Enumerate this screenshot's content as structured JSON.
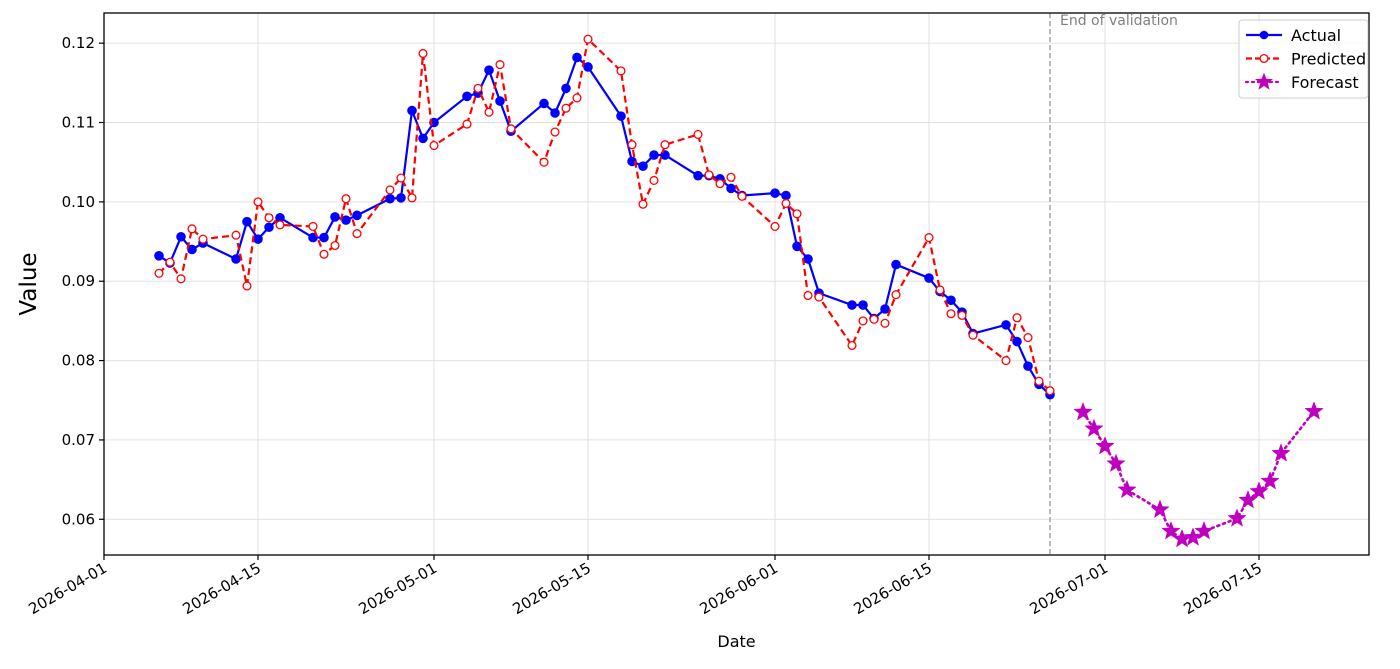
{
  "chart_data": {
    "type": "line",
    "title": "",
    "xlabel": "Date",
    "ylabel": "Value",
    "x_range": [
      "2026-04-01",
      "2026-07-25"
    ],
    "ylim": [
      0.0555,
      0.1238
    ],
    "grid": true,
    "legend_position": "top-right",
    "x_ticks": [
      "2026-04-01",
      "2026-04-15",
      "2026-05-01",
      "2026-05-15",
      "2026-06-01",
      "2026-06-15",
      "2026-07-01",
      "2026-07-15"
    ],
    "y_ticks": [
      "0.06",
      "0.07",
      "0.08",
      "0.09",
      "0.10",
      "0.11",
      "0.12"
    ],
    "annotations": [
      {
        "text": "End of validation",
        "x": "2026-06-26"
      }
    ],
    "series": [
      {
        "name": "Actual",
        "color": "#0000ff",
        "style": "solid-filled-circle",
        "points": [
          [
            "2026-04-06",
            0.0932
          ],
          [
            "2026-04-07",
            0.0923
          ],
          [
            "2026-04-08",
            0.0956
          ],
          [
            "2026-04-09",
            0.094
          ],
          [
            "2026-04-10",
            0.0948
          ],
          [
            "2026-04-13",
            0.0928
          ],
          [
            "2026-04-14",
            0.0975
          ],
          [
            "2026-04-15",
            0.0953
          ],
          [
            "2026-04-16",
            0.0968
          ],
          [
            "2026-04-17",
            0.098
          ],
          [
            "2026-04-20",
            0.0955
          ],
          [
            "2026-04-21",
            0.0955
          ],
          [
            "2026-04-22",
            0.0981
          ],
          [
            "2026-04-23",
            0.0977
          ],
          [
            "2026-04-24",
            0.0983
          ],
          [
            "2026-04-27",
            0.1004
          ],
          [
            "2026-04-28",
            0.1005
          ],
          [
            "2026-04-29",
            0.1115
          ],
          [
            "2026-04-30",
            0.108
          ],
          [
            "2026-05-01",
            0.11
          ],
          [
            "2026-05-04",
            0.1133
          ],
          [
            "2026-05-05",
            0.1137
          ],
          [
            "2026-05-06",
            0.1166
          ],
          [
            "2026-05-07",
            0.1127
          ],
          [
            "2026-05-08",
            0.1089
          ],
          [
            "2026-05-11",
            0.1124
          ],
          [
            "2026-05-12",
            0.1112
          ],
          [
            "2026-05-13",
            0.1143
          ],
          [
            "2026-05-14",
            0.1182
          ],
          [
            "2026-05-15",
            0.117
          ],
          [
            "2026-05-18",
            0.1108
          ],
          [
            "2026-05-19",
            0.1051
          ],
          [
            "2026-05-20",
            0.1045
          ],
          [
            "2026-05-21",
            0.1059
          ],
          [
            "2026-05-22",
            0.1059
          ],
          [
            "2026-05-25",
            0.1033
          ],
          [
            "2026-05-26",
            0.1033
          ],
          [
            "2026-05-27",
            0.1029
          ],
          [
            "2026-05-28",
            0.1017
          ],
          [
            "2026-05-29",
            0.1008
          ],
          [
            "2026-06-01",
            0.1011
          ],
          [
            "2026-06-02",
            0.1008
          ],
          [
            "2026-06-03",
            0.0944
          ],
          [
            "2026-06-04",
            0.0928
          ],
          [
            "2026-06-05",
            0.0885
          ],
          [
            "2026-06-08",
            0.087
          ],
          [
            "2026-06-09",
            0.087
          ],
          [
            "2026-06-10",
            0.0853
          ],
          [
            "2026-06-11",
            0.0865
          ],
          [
            "2026-06-12",
            0.0921
          ],
          [
            "2026-06-15",
            0.0904
          ],
          [
            "2026-06-16",
            0.0887
          ],
          [
            "2026-06-17",
            0.0876
          ],
          [
            "2026-06-18",
            0.0861
          ],
          [
            "2026-06-19",
            0.0834
          ],
          [
            "2026-06-22",
            0.0845
          ],
          [
            "2026-06-23",
            0.0824
          ],
          [
            "2026-06-24",
            0.0793
          ],
          [
            "2026-06-25",
            0.077
          ],
          [
            "2026-06-26",
            0.0757
          ]
        ]
      },
      {
        "name": "Predicted",
        "color": "#ff0000",
        "style": "dashed-open-circle",
        "points": [
          [
            "2026-04-06",
            0.091
          ],
          [
            "2026-04-07",
            0.0924
          ],
          [
            "2026-04-08",
            0.0903
          ],
          [
            "2026-04-09",
            0.0966
          ],
          [
            "2026-04-10",
            0.0953
          ],
          [
            "2026-04-13",
            0.0958
          ],
          [
            "2026-04-14",
            0.0894
          ],
          [
            "2026-04-15",
            0.1
          ],
          [
            "2026-04-16",
            0.098
          ],
          [
            "2026-04-17",
            0.0971
          ],
          [
            "2026-04-20",
            0.0969
          ],
          [
            "2026-04-21",
            0.0934
          ],
          [
            "2026-04-22",
            0.0945
          ],
          [
            "2026-04-23",
            0.1004
          ],
          [
            "2026-04-24",
            0.096
          ],
          [
            "2026-04-27",
            0.1015
          ],
          [
            "2026-04-28",
            0.103
          ],
          [
            "2026-04-29",
            0.1005
          ],
          [
            "2026-04-30",
            0.1187
          ],
          [
            "2026-05-01",
            0.1071
          ],
          [
            "2026-05-04",
            0.1098
          ],
          [
            "2026-05-05",
            0.1143
          ],
          [
            "2026-05-06",
            0.1113
          ],
          [
            "2026-05-07",
            0.1173
          ],
          [
            "2026-05-08",
            0.1092
          ],
          [
            "2026-05-11",
            0.105
          ],
          [
            "2026-05-12",
            0.1088
          ],
          [
            "2026-05-13",
            0.1118
          ],
          [
            "2026-05-14",
            0.1131
          ],
          [
            "2026-05-15",
            0.1205
          ],
          [
            "2026-05-18",
            0.1165
          ],
          [
            "2026-05-19",
            0.1072
          ],
          [
            "2026-05-20",
            0.0997
          ],
          [
            "2026-05-21",
            0.1027
          ],
          [
            "2026-05-22",
            0.1072
          ],
          [
            "2026-05-25",
            0.1085
          ],
          [
            "2026-05-26",
            0.1034
          ],
          [
            "2026-05-27",
            0.1023
          ],
          [
            "2026-05-28",
            0.1031
          ],
          [
            "2026-05-29",
            0.1007
          ],
          [
            "2026-06-01",
            0.0969
          ],
          [
            "2026-06-02",
            0.0998
          ],
          [
            "2026-06-03",
            0.0985
          ],
          [
            "2026-06-04",
            0.0882
          ],
          [
            "2026-06-05",
            0.088
          ],
          [
            "2026-06-08",
            0.0819
          ],
          [
            "2026-06-09",
            0.085
          ],
          [
            "2026-06-10",
            0.0852
          ],
          [
            "2026-06-11",
            0.0847
          ],
          [
            "2026-06-12",
            0.0883
          ],
          [
            "2026-06-15",
            0.0955
          ],
          [
            "2026-06-16",
            0.0889
          ],
          [
            "2026-06-17",
            0.0859
          ],
          [
            "2026-06-18",
            0.0857
          ],
          [
            "2026-06-19",
            0.0832
          ],
          [
            "2026-06-22",
            0.08
          ],
          [
            "2026-06-23",
            0.0854
          ],
          [
            "2026-06-24",
            0.0829
          ],
          [
            "2026-06-25",
            0.0774
          ],
          [
            "2026-06-26",
            0.0762
          ]
        ]
      },
      {
        "name": "Forecast",
        "color": "#bf00bf",
        "style": "dotted-star",
        "points": [
          [
            "2026-06-29",
            0.0735
          ],
          [
            "2026-06-30",
            0.0714
          ],
          [
            "2026-07-01",
            0.0692
          ],
          [
            "2026-07-02",
            0.067
          ],
          [
            "2026-07-03",
            0.0637
          ],
          [
            "2026-07-06",
            0.0612
          ],
          [
            "2026-07-07",
            0.0585
          ],
          [
            "2026-07-08",
            0.0575
          ],
          [
            "2026-07-09",
            0.0577
          ],
          [
            "2026-07-10",
            0.0585
          ],
          [
            "2026-07-13",
            0.0601
          ],
          [
            "2026-07-14",
            0.0624
          ],
          [
            "2026-07-15",
            0.0635
          ],
          [
            "2026-07-16",
            0.0648
          ],
          [
            "2026-07-17",
            0.0683
          ],
          [
            "2026-07-20",
            0.0736
          ]
        ]
      }
    ]
  }
}
